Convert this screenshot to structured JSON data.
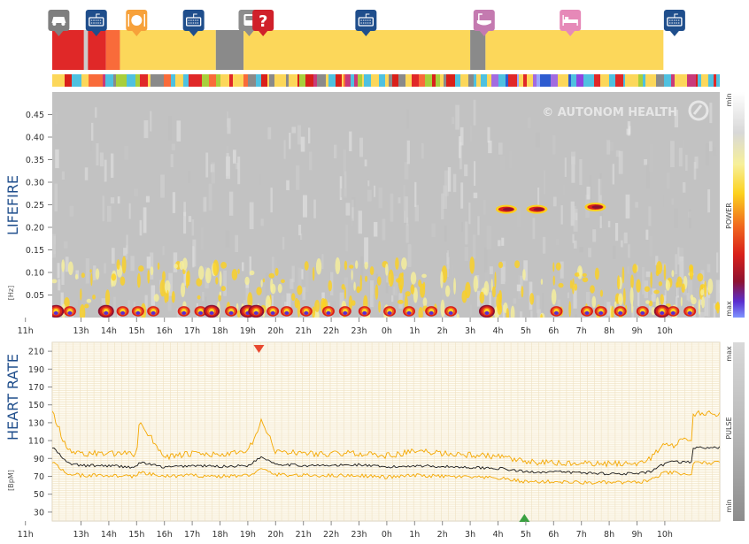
{
  "watermark": "© AUTONOM HEALTH",
  "activity_icons": [
    {
      "name": "car-icon",
      "color": "#7f7f7f",
      "glyph": "car",
      "time": 12.2
    },
    {
      "name": "keyboard-icon",
      "color": "#1f4e8c",
      "glyph": "keyboard",
      "time": 13.55
    },
    {
      "name": "meal-icon",
      "color": "#f7a13a",
      "glyph": "meal",
      "time": 15.0
    },
    {
      "name": "keyboard-icon",
      "color": "#1f4e8c",
      "glyph": "keyboard",
      "time": 17.05
    },
    {
      "name": "transport-icon",
      "color": "#8c8c8c",
      "glyph": "bus",
      "time": 19.05
    },
    {
      "name": "unknown-activity-icon",
      "color": "#d0202a",
      "glyph": "?",
      "time": 19.55
    },
    {
      "name": "keyboard-icon",
      "color": "#1f4e8c",
      "glyph": "keyboard",
      "time": 23.25
    },
    {
      "name": "bath-icon",
      "color": "#c47ab0",
      "glyph": "bath",
      "time": 3.5
    },
    {
      "name": "bed-icon",
      "color": "#e689b8",
      "glyph": "bed",
      "time": 6.6
    },
    {
      "name": "keyboard-icon",
      "color": "#1f4e8c",
      "glyph": "keyboard",
      "time": 10.35
    }
  ],
  "activity_segments": [
    {
      "from": 11.0,
      "to": 11.55,
      "color": "#8a8a8a"
    },
    {
      "from": 11.55,
      "to": 13.9,
      "color": "#e02828"
    },
    {
      "from": 13.9,
      "to": 14.4,
      "color": "#f96b3a"
    },
    {
      "from": 14.4,
      "to": 17.85,
      "color": "#fcd75a"
    },
    {
      "from": 17.85,
      "to": 18.85,
      "color": "#8a8a8a"
    },
    {
      "from": 18.85,
      "to": 3.0,
      "color": "#fcd75a"
    },
    {
      "from": 3.0,
      "to": 3.55,
      "color": "#8a8a8a"
    },
    {
      "from": 3.55,
      "to": 9.95,
      "color": "#fcd75a"
    },
    {
      "from": 9.95,
      "to": 13.1,
      "color": "#f96b3a"
    },
    {
      "from": 13.1,
      "to": 13.25,
      "color": "#cccccc"
    }
  ],
  "lifefire": {
    "title": "LIFEFIRE",
    "unit": "[Hz]",
    "legend_top": "min",
    "legend_mid": "POWER",
    "legend_bottom": "max",
    "y_ticks": [
      "0.45",
      "0.40",
      "0.35",
      "0.30",
      "0.25",
      "0.20",
      "0.15",
      "0.10",
      "0.05"
    ]
  },
  "heart": {
    "title": "HEART RATE",
    "unit": "[BpM]",
    "legend_top": "max",
    "legend_mid": "PULSE",
    "legend_bottom": "min",
    "y_ticks": [
      "210",
      "190",
      "170",
      "150",
      "130",
      "110",
      "90",
      "70",
      "50",
      "30"
    ]
  },
  "x_ticks": [
    "13h",
    "14h",
    "15h",
    "16h",
    "17h",
    "18h",
    "19h",
    "20h",
    "21h",
    "22h",
    "23h",
    "0h",
    "1h",
    "2h",
    "3h",
    "4h",
    "5h",
    "6h",
    "7h",
    "8h",
    "9h",
    "10h",
    "11h"
  ],
  "chart_data": [
    {
      "type": "heatmap",
      "title": "LIFEFIRE",
      "ylabel": "[Hz]",
      "ylim": [
        0,
        0.5
      ],
      "y_ticks": [
        0.05,
        0.1,
        0.15,
        0.2,
        0.25,
        0.3,
        0.35,
        0.4,
        0.45
      ],
      "x_ticks": [
        "13h",
        "14h",
        "15h",
        "16h",
        "17h",
        "18h",
        "19h",
        "20h",
        "21h",
        "22h",
        "23h",
        "0h",
        "1h",
        "2h",
        "3h",
        "4h",
        "5h",
        "6h",
        "7h",
        "8h",
        "9h",
        "10h",
        "11h"
      ],
      "colorbar": {
        "label": "POWER",
        "top": "min",
        "bottom": "max"
      },
      "hotspots": [
        {
          "t": 12.1,
          "hz": 0.01,
          "level": 0.9
        },
        {
          "t": 12.6,
          "hz": 0.01,
          "level": 0.7
        },
        {
          "t": 13.9,
          "hz": 0.01,
          "level": 0.9
        },
        {
          "t": 14.5,
          "hz": 0.01,
          "level": 0.6
        },
        {
          "t": 15.05,
          "hz": 0.01,
          "level": 0.8
        },
        {
          "t": 15.6,
          "hz": 0.01,
          "level": 0.7
        },
        {
          "t": 16.7,
          "hz": 0.01,
          "level": 0.6
        },
        {
          "t": 17.3,
          "hz": 0.01,
          "level": 0.7
        },
        {
          "t": 17.7,
          "hz": 0.01,
          "level": 0.9
        },
        {
          "t": 18.4,
          "hz": 0.01,
          "level": 0.8
        },
        {
          "t": 19.0,
          "hz": 0.01,
          "level": 0.9
        },
        {
          "t": 19.3,
          "hz": 0.01,
          "level": 0.9
        },
        {
          "t": 19.9,
          "hz": 0.01,
          "level": 0.8
        },
        {
          "t": 20.4,
          "hz": 0.01,
          "level": 0.7
        },
        {
          "t": 21.1,
          "hz": 0.01,
          "level": 0.8
        },
        {
          "t": 21.9,
          "hz": 0.01,
          "level": 0.6
        },
        {
          "t": 22.5,
          "hz": 0.01,
          "level": 0.7
        },
        {
          "t": 23.2,
          "hz": 0.01,
          "level": 0.6
        },
        {
          "t": 0.1,
          "hz": 0.01,
          "level": 0.5
        },
        {
          "t": 0.8,
          "hz": 0.01,
          "level": 0.7
        },
        {
          "t": 1.6,
          "hz": 0.01,
          "level": 0.6
        },
        {
          "t": 2.3,
          "hz": 0.01,
          "level": 0.5
        },
        {
          "t": 3.6,
          "hz": 0.01,
          "level": 0.9
        },
        {
          "t": 6.1,
          "hz": 0.01,
          "level": 0.8
        },
        {
          "t": 7.2,
          "hz": 0.01,
          "level": 0.6
        },
        {
          "t": 7.7,
          "hz": 0.01,
          "level": 0.7
        },
        {
          "t": 8.4,
          "hz": 0.01,
          "level": 0.8
        },
        {
          "t": 9.2,
          "hz": 0.01,
          "level": 0.7
        },
        {
          "t": 9.9,
          "hz": 0.01,
          "level": 0.9
        },
        {
          "t": 10.3,
          "hz": 0.01,
          "level": 0.8
        },
        {
          "t": 10.9,
          "hz": 0.01,
          "level": 0.7
        },
        {
          "t": 4.3,
          "hz": 0.24,
          "level": 0.9
        },
        {
          "t": 5.4,
          "hz": 0.24,
          "level": 0.8
        },
        {
          "t": 7.5,
          "hz": 0.245,
          "level": 0.9
        }
      ]
    },
    {
      "type": "line",
      "title": "HEART RATE",
      "ylabel": "[BpM]",
      "ylim": [
        20,
        220
      ],
      "y_ticks": [
        30,
        50,
        70,
        90,
        110,
        130,
        150,
        170,
        190,
        210
      ],
      "x_ticks": [
        "13h",
        "14h",
        "15h",
        "16h",
        "17h",
        "18h",
        "19h",
        "20h",
        "21h",
        "22h",
        "23h",
        "0h",
        "1h",
        "2h",
        "3h",
        "4h",
        "5h",
        "6h",
        "7h",
        "8h",
        "9h",
        "10h",
        "11h"
      ],
      "x": [
        "12h",
        "12.5h",
        "13h",
        "14h",
        "15h",
        "15.1h",
        "16h",
        "17h",
        "18h",
        "19h",
        "19.5h",
        "20h",
        "21h",
        "22h",
        "23h",
        "0h",
        "1h",
        "2h",
        "3h",
        "4h",
        "5h",
        "6h",
        "7h",
        "8h",
        "9h",
        "9.5h",
        "10h",
        "10.5h",
        "11h",
        "12h"
      ],
      "series": [
        {
          "values": [
            102,
            85,
            82,
            82,
            80,
            86,
            80,
            82,
            81,
            82,
            92,
            84,
            82,
            82,
            83,
            80,
            82,
            81,
            80,
            79,
            75,
            75,
            74,
            73,
            73,
            75,
            84,
            88,
            84,
            86
          ]
        },
        {
          "values": [
            140,
            100,
            96,
            95,
            95,
            132,
            92,
            95,
            94,
            97,
            132,
            98,
            96,
            95,
            96,
            93,
            98,
            96,
            94,
            92,
            86,
            85,
            84,
            84,
            85,
            90,
            108,
            102,
            98,
            110
          ]
        },
        {
          "values": [
            85,
            73,
            71,
            71,
            70,
            74,
            70,
            71,
            70,
            71,
            78,
            72,
            71,
            71,
            71,
            69,
            71,
            70,
            69,
            68,
            64,
            64,
            63,
            63,
            63,
            66,
            74,
            74,
            71,
            72
          ]
        }
      ],
      "markers": [
        {
          "kind": "max",
          "x": "19.4h",
          "y": 214,
          "color": "#e8482f"
        },
        {
          "kind": "min",
          "x": "4.95h",
          "y": 18,
          "color": "#3aa040"
        }
      ]
    }
  ]
}
